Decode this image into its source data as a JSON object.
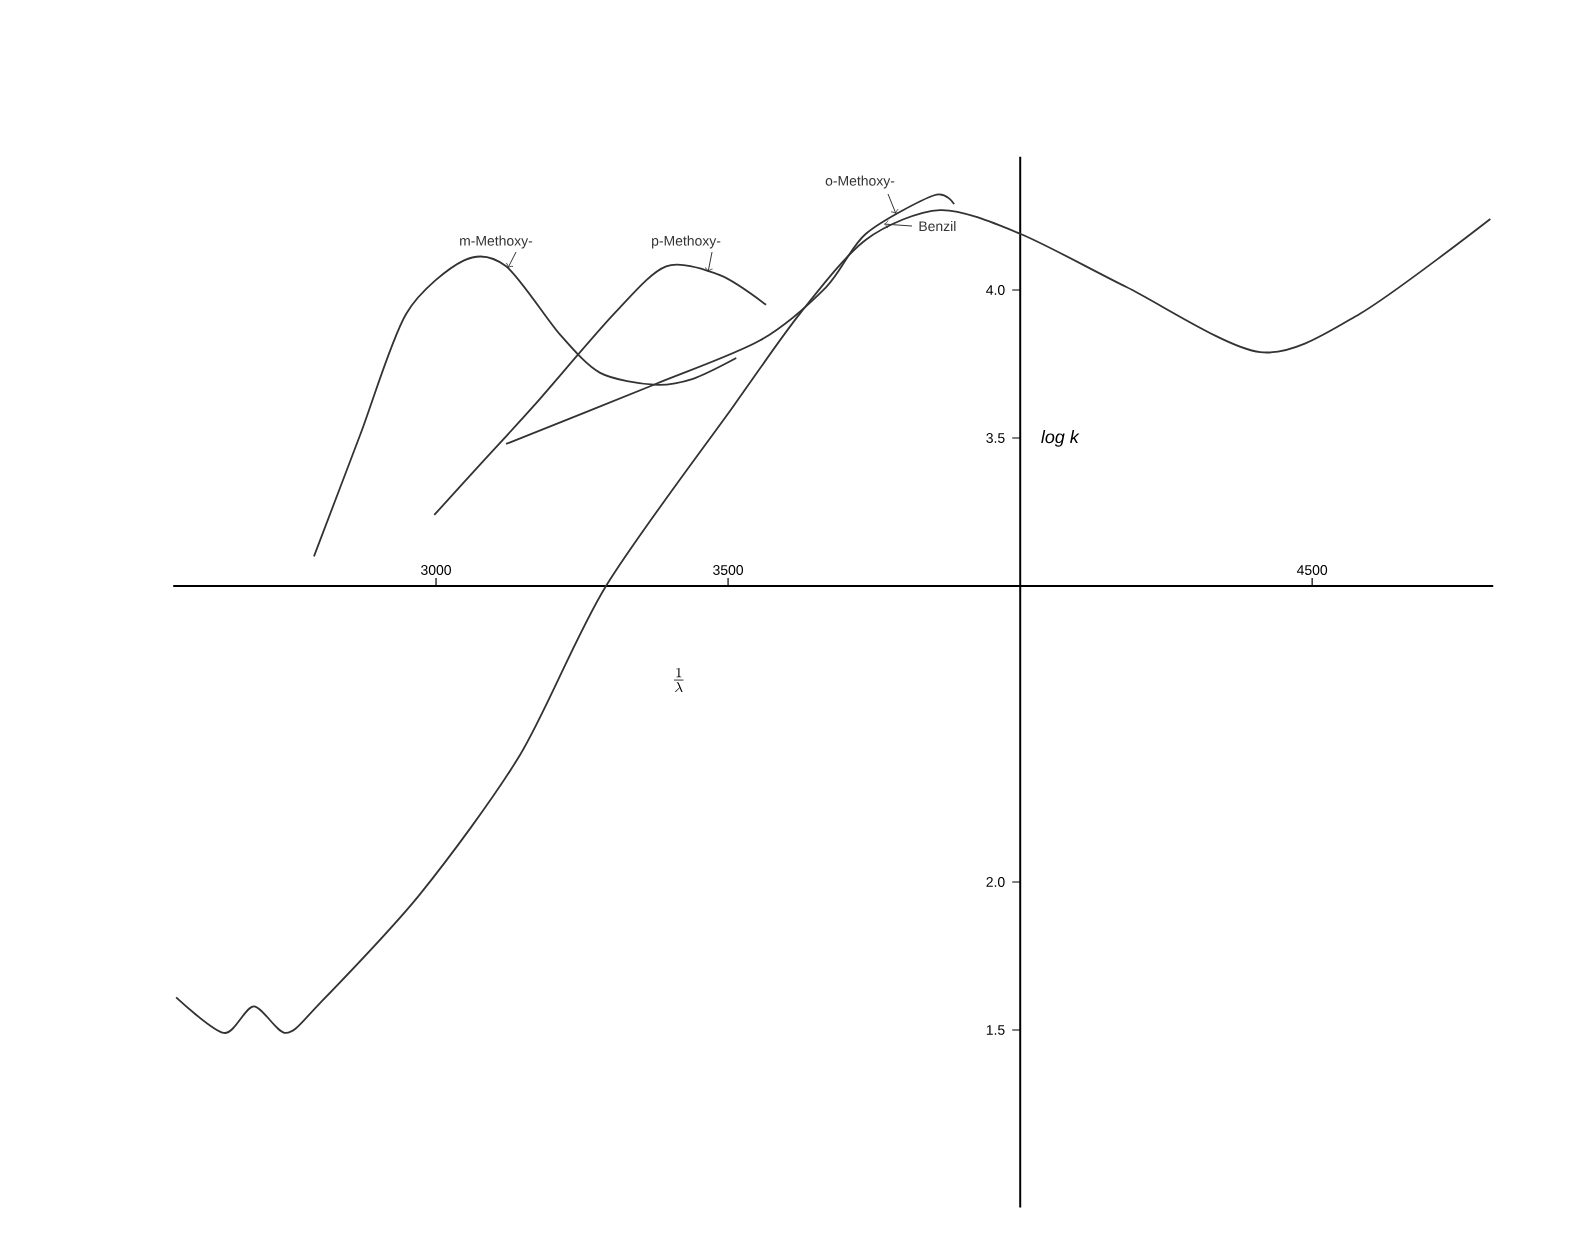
{
  "chart_data": {
    "type": "line",
    "xlabel": "\\frac{1}{\\lambda}",
    "ylabel": "log k",
    "xlim": [
      2550,
      4810
    ],
    "ylim": [
      0.9,
      4.45
    ],
    "xticks": [
      3000,
      3500,
      4500
    ],
    "yticks": [
      {
        "value": 1.5,
        "label": "1.5"
      },
      {
        "value": 2.0,
        "label": "2.0"
      },
      {
        "value": 3.5,
        "label": "3.5"
      },
      {
        "value": 4.0,
        "label": "4.0"
      }
    ],
    "marker": "none",
    "line_style": "solid",
    "grid": false,
    "series": [
      {
        "name": "m-Methoxy-",
        "color": "#333333",
        "x": [
          2791,
          2870,
          2949,
          3048,
          3120,
          3212,
          3281,
          3373,
          3440,
          3514
        ],
        "values": [
          3.1,
          3.51,
          3.92,
          4.1,
          4.08,
          3.85,
          3.72,
          3.68,
          3.7,
          3.77
        ]
      },
      {
        "name": "p-Methoxy-",
        "color": "#333333",
        "x": [
          2997,
          3080,
          3168,
          3305,
          3394,
          3486,
          3565
        ],
        "values": [
          3.24,
          3.42,
          3.61,
          3.92,
          4.08,
          4.05,
          3.95
        ]
      },
      {
        "name": "o-Methoxy-",
        "color": "#333333",
        "x": [
          3120,
          3373,
          3555,
          3668,
          3736,
          3853,
          3887
        ],
        "values": [
          3.48,
          3.68,
          3.83,
          4.01,
          4.19,
          4.32,
          4.29
        ]
      },
      {
        "name": "Benzil",
        "color": "#333333",
        "x": [
          2555,
          2637,
          2688,
          2743,
          2801,
          2973,
          3144,
          3291,
          3510,
          3623,
          3736,
          3863,
          4000,
          4182,
          4411,
          4582,
          4805
        ],
        "values": [
          1.61,
          1.49,
          1.58,
          1.49,
          1.59,
          1.96,
          2.43,
          3.0,
          3.61,
          3.92,
          4.17,
          4.27,
          4.19,
          4.01,
          3.79,
          3.92,
          4.24
        ]
      }
    ]
  }
}
